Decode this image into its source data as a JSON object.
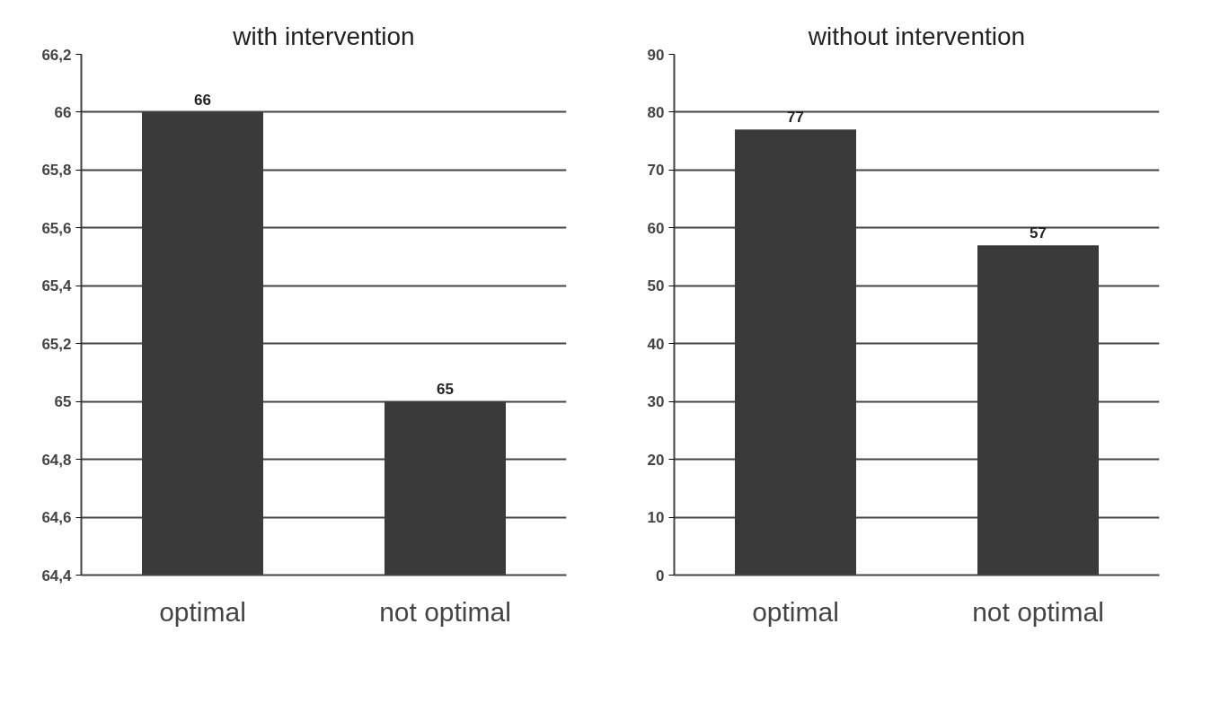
{
  "chart_data": [
    {
      "type": "bar",
      "title": "with intervention",
      "categories": [
        "optimal",
        "not optimal"
      ],
      "values": [
        66,
        65
      ],
      "color": "#3a3a3a",
      "data_labels": true,
      "grid": "y",
      "ylim": [
        64.4,
        66.2
      ],
      "yticks": [
        {
          "value": 64.4,
          "label": "64,4"
        },
        {
          "value": 64.6,
          "label": "64,6"
        },
        {
          "value": 64.8,
          "label": "64,8"
        },
        {
          "value": 65,
          "label": "65"
        },
        {
          "value": 65.2,
          "label": "65,2"
        },
        {
          "value": 65.4,
          "label": "65,4"
        },
        {
          "value": 65.6,
          "label": "65,6"
        },
        {
          "value": 65.8,
          "label": "65,8"
        },
        {
          "value": 66,
          "label": "66"
        },
        {
          "value": 66.2,
          "label": "66,2"
        }
      ]
    },
    {
      "type": "bar",
      "title": "without intervention",
      "categories": [
        "optimal",
        "not optimal"
      ],
      "values": [
        77,
        57
      ],
      "color": "#3a3a3a",
      "data_labels": true,
      "grid": "y",
      "ylim": [
        0,
        90
      ],
      "yticks": [
        0,
        10,
        20,
        30,
        40,
        50,
        60,
        70,
        80,
        90
      ]
    }
  ]
}
